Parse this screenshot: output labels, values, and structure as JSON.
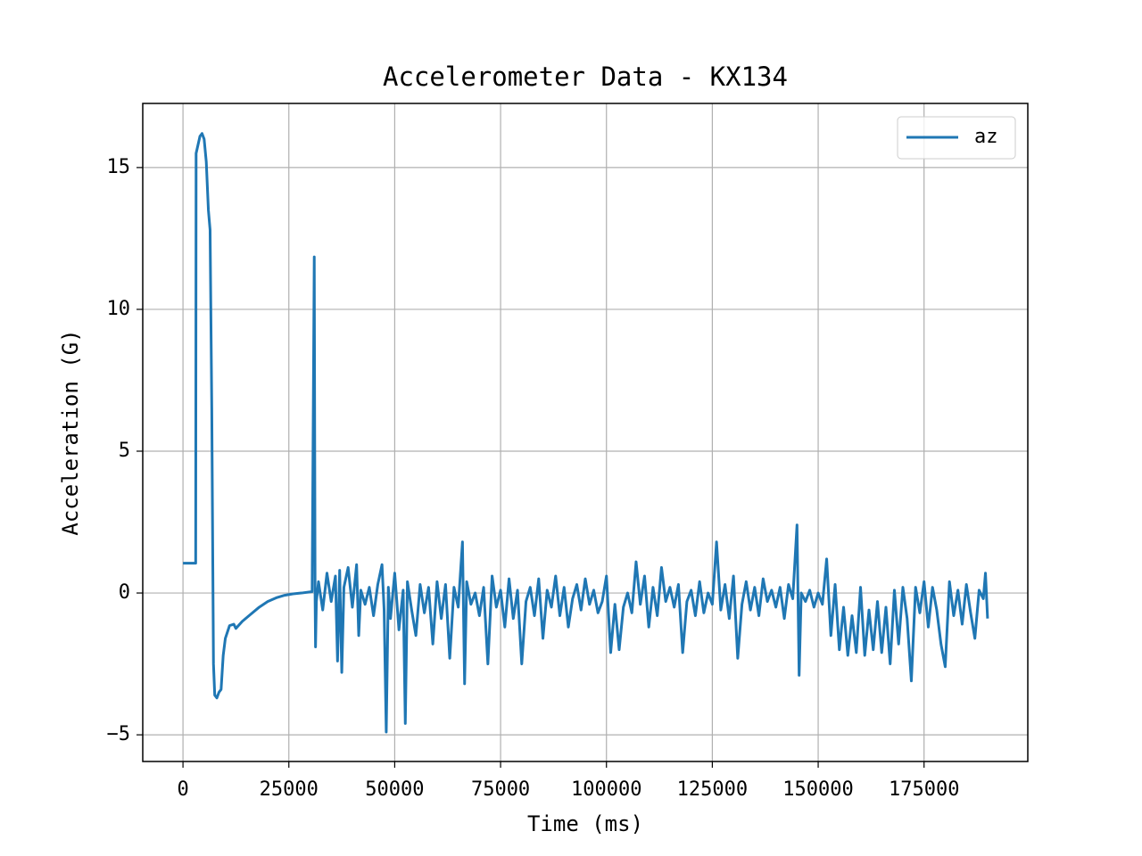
{
  "chart_data": {
    "type": "line",
    "title": "Accelerometer Data - KX134",
    "x_label": "Time (ms)",
    "y_label": "Acceleration (G)",
    "xlim": [
      -9500,
      199500
    ],
    "ylim": [
      -5.94,
      17.26
    ],
    "xticks": [
      0,
      25000,
      50000,
      75000,
      100000,
      125000,
      150000,
      175000
    ],
    "yticks": [
      {
        "value": -5,
        "label": "−5"
      },
      0,
      5,
      10,
      15
    ],
    "grid": true,
    "legend": "upper right",
    "x": [
      0,
      3000,
      3100,
      4000,
      4500,
      5000,
      5500,
      6000,
      6400,
      6800,
      7200,
      7500,
      8000,
      8500,
      9000,
      9500,
      10000,
      11000,
      12000,
      12500,
      14000,
      16000,
      18000,
      20000,
      22000,
      24000,
      26000,
      28000,
      30500,
      31000,
      31200,
      31300,
      31500,
      32000,
      33000,
      34000,
      35000,
      36000,
      36500,
      37000,
      37500,
      38000,
      39000,
      40000,
      41000,
      41500,
      42000,
      43000,
      44000,
      45000,
      46000,
      47000,
      47500,
      48000,
      48500,
      49000,
      50000,
      51000,
      52000,
      52500,
      53000,
      54000,
      55000,
      56000,
      57000,
      58000,
      59000,
      60000,
      61000,
      62000,
      63000,
      64000,
      65000,
      66000,
      66500,
      67000,
      68000,
      69000,
      70000,
      71000,
      72000,
      73000,
      74000,
      75000,
      76000,
      77000,
      78000,
      79000,
      80000,
      81000,
      82000,
      83000,
      84000,
      85000,
      86000,
      87000,
      88000,
      89000,
      90000,
      91000,
      92000,
      93000,
      94000,
      95000,
      96000,
      97000,
      98000,
      99000,
      100000,
      101000,
      102000,
      103000,
      104000,
      105000,
      106000,
      107000,
      108000,
      109000,
      110000,
      111000,
      112000,
      113000,
      114000,
      115000,
      116000,
      117000,
      118000,
      119000,
      120000,
      121000,
      122000,
      123000,
      124000,
      125000,
      126000,
      127000,
      128000,
      129000,
      130000,
      131000,
      132000,
      133000,
      134000,
      135000,
      136000,
      137000,
      138000,
      139000,
      140000,
      141000,
      142000,
      143000,
      144000,
      145000,
      145500,
      146000,
      147000,
      148000,
      149000,
      150000,
      151000,
      152000,
      153000,
      154000,
      155000,
      156000,
      157000,
      158000,
      159000,
      160000,
      161000,
      162000,
      163000,
      164000,
      165000,
      166000,
      167000,
      168000,
      169000,
      170000,
      171000,
      172000,
      173000,
      174000,
      175000,
      176000,
      177000,
      178000,
      179000,
      180000,
      181000,
      182000,
      183000,
      184000,
      185000,
      186000,
      187000,
      188000,
      189000,
      189500,
      190000
    ],
    "series": [
      {
        "name": "az",
        "color": "#1f77b4",
        "values": [
          1.05,
          1.05,
          15.5,
          16.1,
          16.2,
          16.0,
          15.2,
          13.5,
          12.8,
          6.5,
          -2.5,
          -3.6,
          -3.7,
          -3.5,
          -3.4,
          -2.2,
          -1.6,
          -1.15,
          -1.1,
          -1.25,
          -1.0,
          -0.75,
          -0.5,
          -0.3,
          -0.17,
          -0.08,
          -0.03,
          0.0,
          0.05,
          11.85,
          -0.2,
          -1.9,
          -0.3,
          0.4,
          -0.6,
          0.7,
          -0.3,
          0.6,
          -2.4,
          0.8,
          -2.8,
          0.2,
          0.9,
          -0.5,
          1.0,
          -1.5,
          0.1,
          -0.4,
          0.2,
          -0.8,
          0.3,
          1.0,
          -0.6,
          -4.9,
          0.2,
          -0.9,
          0.7,
          -1.3,
          0.1,
          -4.6,
          0.4,
          -0.6,
          -1.5,
          0.3,
          -0.7,
          0.2,
          -1.8,
          0.4,
          -0.9,
          0.3,
          -2.3,
          0.2,
          -0.5,
          1.8,
          -3.2,
          0.4,
          -0.4,
          0.0,
          -0.8,
          0.2,
          -2.5,
          0.6,
          -0.5,
          0.1,
          -1.2,
          0.5,
          -0.9,
          0.1,
          -2.5,
          -0.3,
          0.2,
          -0.8,
          0.5,
          -1.6,
          0.1,
          -0.5,
          0.6,
          -0.8,
          0.2,
          -1.2,
          -0.2,
          0.3,
          -0.6,
          0.5,
          -0.4,
          0.1,
          -0.7,
          -0.3,
          0.6,
          -2.1,
          -0.4,
          -2.0,
          -0.5,
          0.0,
          -0.7,
          1.1,
          -0.4,
          0.6,
          -1.2,
          0.2,
          -0.8,
          0.9,
          -0.3,
          0.2,
          -0.5,
          0.3,
          -2.1,
          -0.3,
          0.1,
          -0.8,
          0.4,
          -0.7,
          0.0,
          -0.4,
          1.8,
          -0.6,
          0.3,
          -0.9,
          0.6,
          -2.3,
          -0.4,
          0.4,
          -0.6,
          0.2,
          -0.8,
          0.5,
          -0.3,
          0.1,
          -0.5,
          0.2,
          -0.9,
          0.3,
          -0.2,
          2.4,
          -2.9,
          0.0,
          -0.3,
          0.1,
          -0.5,
          0.0,
          -0.4,
          1.2,
          -1.5,
          0.3,
          -2.0,
          -0.5,
          -2.2,
          -0.8,
          -2.1,
          0.2,
          -2.2,
          -0.6,
          -2.0,
          -0.3,
          -2.1,
          -0.5,
          -2.5,
          0.1,
          -1.8,
          0.2,
          -0.9,
          -3.1,
          0.2,
          -0.7,
          0.4,
          -1.2,
          0.2,
          -0.6,
          -1.8,
          -2.6,
          0.4,
          -0.8,
          0.1,
          -1.1,
          0.3,
          -0.7,
          -1.6,
          0.1,
          -0.2,
          0.7,
          -0.9
        ]
      }
    ]
  }
}
